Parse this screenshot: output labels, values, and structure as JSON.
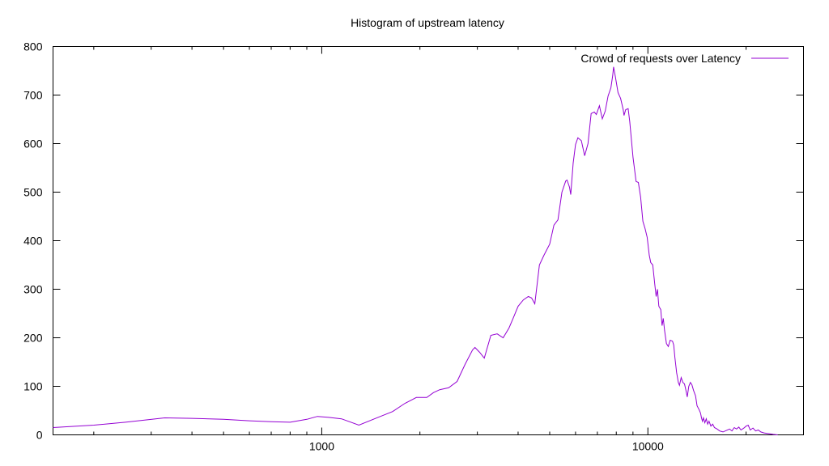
{
  "chart_data": {
    "type": "line",
    "title": "Histogram of upstream latency",
    "xlabel": "",
    "ylabel": "",
    "xscale": "log",
    "xlim": [
      150,
      30000
    ],
    "ylim": [
      0,
      800
    ],
    "x_ticks": [
      1000,
      10000
    ],
    "x_tick_labels": [
      "1000",
      "10000"
    ],
    "y_ticks": [
      0,
      100,
      200,
      300,
      400,
      500,
      600,
      700,
      800
    ],
    "y_tick_labels": [
      "0",
      "100",
      "200",
      "300",
      "400",
      "500",
      "600",
      "700",
      "800"
    ],
    "grid": false,
    "legend": "top-right",
    "series": [
      {
        "name": "Crowd of requests over Latency",
        "color": "#9400d3",
        "points": [
          [
            150,
            15
          ],
          [
            200,
            20
          ],
          [
            250,
            26
          ],
          [
            330,
            35
          ],
          [
            400,
            34
          ],
          [
            500,
            32
          ],
          [
            600,
            29
          ],
          [
            700,
            27
          ],
          [
            800,
            26
          ],
          [
            900,
            32
          ],
          [
            970,
            38
          ],
          [
            1050,
            36
          ],
          [
            1150,
            33
          ],
          [
            1300,
            20
          ],
          [
            1500,
            37
          ],
          [
            1650,
            48
          ],
          [
            1800,
            65
          ],
          [
            1950,
            77
          ],
          [
            2100,
            77
          ],
          [
            2200,
            87
          ],
          [
            2300,
            93
          ],
          [
            2450,
            97
          ],
          [
            2600,
            110
          ],
          [
            2750,
            145
          ],
          [
            2900,
            175
          ],
          [
            2950,
            180
          ],
          [
            3050,
            170
          ],
          [
            3150,
            158
          ],
          [
            3300,
            205
          ],
          [
            3450,
            208
          ],
          [
            3600,
            200
          ],
          [
            3750,
            220
          ],
          [
            3850,
            238
          ],
          [
            4000,
            265
          ],
          [
            4150,
            278
          ],
          [
            4300,
            285
          ],
          [
            4400,
            282
          ],
          [
            4500,
            270
          ],
          [
            4650,
            350
          ],
          [
            4800,
            370
          ],
          [
            5000,
            393
          ],
          [
            5150,
            432
          ],
          [
            5300,
            443
          ],
          [
            5450,
            500
          ],
          [
            5600,
            523
          ],
          [
            5650,
            525
          ],
          [
            5750,
            510
          ],
          [
            5800,
            495
          ],
          [
            5900,
            560
          ],
          [
            6000,
            598
          ],
          [
            6100,
            612
          ],
          [
            6250,
            606
          ],
          [
            6400,
            575
          ],
          [
            6550,
            600
          ],
          [
            6700,
            662
          ],
          [
            6850,
            665
          ],
          [
            6950,
            660
          ],
          [
            7100,
            678
          ],
          [
            7250,
            651
          ],
          [
            7400,
            667
          ],
          [
            7550,
            698
          ],
          [
            7700,
            715
          ],
          [
            7800,
            740
          ],
          [
            7850,
            758
          ],
          [
            7950,
            738
          ],
          [
            8100,
            705
          ],
          [
            8250,
            693
          ],
          [
            8400,
            670
          ],
          [
            8450,
            658
          ],
          [
            8550,
            670
          ],
          [
            8700,
            672
          ],
          [
            8800,
            645
          ],
          [
            9000,
            572
          ],
          [
            9200,
            522
          ],
          [
            9350,
            520
          ],
          [
            9500,
            490
          ],
          [
            9650,
            440
          ],
          [
            9800,
            425
          ],
          [
            9950,
            407
          ],
          [
            10100,
            370
          ],
          [
            10200,
            355
          ],
          [
            10350,
            350
          ],
          [
            10500,
            310
          ],
          [
            10600,
            285
          ],
          [
            10700,
            300
          ],
          [
            10800,
            265
          ],
          [
            10950,
            258
          ],
          [
            11050,
            225
          ],
          [
            11150,
            240
          ],
          [
            11250,
            215
          ],
          [
            11400,
            188
          ],
          [
            11550,
            182
          ],
          [
            11700,
            195
          ],
          [
            11900,
            193
          ],
          [
            12000,
            185
          ],
          [
            12100,
            160
          ],
          [
            12250,
            128
          ],
          [
            12400,
            108
          ],
          [
            12500,
            102
          ],
          [
            12650,
            118
          ],
          [
            12800,
            108
          ],
          [
            12950,
            105
          ],
          [
            13100,
            90
          ],
          [
            13200,
            78
          ],
          [
            13350,
            100
          ],
          [
            13500,
            108
          ],
          [
            13650,
            103
          ],
          [
            13800,
            92
          ],
          [
            14000,
            80
          ],
          [
            14150,
            60
          ],
          [
            14350,
            52
          ],
          [
            14500,
            45
          ],
          [
            14600,
            35
          ],
          [
            14700,
            28
          ],
          [
            14800,
            35
          ],
          [
            14950,
            25
          ],
          [
            15100,
            33
          ],
          [
            15250,
            22
          ],
          [
            15400,
            28
          ],
          [
            15600,
            18
          ],
          [
            15800,
            22
          ],
          [
            16000,
            15
          ],
          [
            16300,
            12
          ],
          [
            16600,
            8
          ],
          [
            17000,
            6
          ],
          [
            17400,
            9
          ],
          [
            17800,
            12
          ],
          [
            18100,
            8
          ],
          [
            18400,
            15
          ],
          [
            18700,
            12
          ],
          [
            19000,
            16
          ],
          [
            19300,
            10
          ],
          [
            19700,
            14
          ],
          [
            20000,
            18
          ],
          [
            20300,
            20
          ],
          [
            20600,
            10
          ],
          [
            21000,
            14
          ],
          [
            21400,
            8
          ],
          [
            21800,
            10
          ],
          [
            22200,
            6
          ],
          [
            22700,
            4
          ],
          [
            23200,
            3
          ],
          [
            23700,
            2
          ],
          [
            24200,
            1
          ],
          [
            25000,
            0
          ]
        ]
      }
    ]
  }
}
